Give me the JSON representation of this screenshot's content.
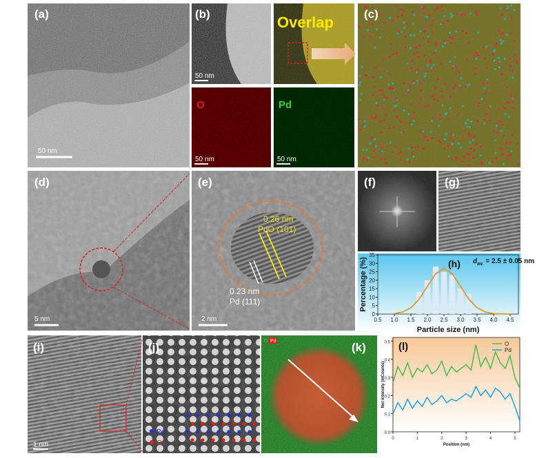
{
  "panels": {
    "a": {
      "label": "(a)",
      "scale_bar": "50 nm"
    },
    "b": {
      "label": "(b)",
      "scale_bar": "50 nm"
    },
    "overlap": {
      "label": "Overlap"
    },
    "o_map": {
      "label": "O",
      "scale_bar": "50 nm"
    },
    "pd_map": {
      "label": "Pd",
      "scale_bar": "50 nm"
    },
    "c": {
      "label": "(c)"
    },
    "d": {
      "label": "(d)",
      "scale_bar": "5 nm"
    },
    "e": {
      "label": "(e)",
      "annotations": [
        "0.26 nm",
        "PdO (101)",
        "0.23 nm",
        "Pd (111)"
      ],
      "scale_bar": "2 nm"
    },
    "f": {
      "label": "(f)"
    },
    "g": {
      "label": "(g)"
    },
    "i": {
      "label": "(i)",
      "scale_bar": "1 nm"
    },
    "j": {
      "label": "(j)",
      "legend": [
        "Pd",
        "O"
      ]
    },
    "k": {
      "label": "(k)",
      "legend": [
        "O",
        "Pd"
      ]
    }
  },
  "chart_data": [
    {
      "type": "bar",
      "label": "(h)",
      "annotation": {
        "symbol": "d",
        "subscript": "av.",
        "text": "= 2.5 ± 0.05 nm"
      },
      "x": [
        1.75,
        2.0,
        2.25,
        2.5,
        2.75,
        3.0,
        3.25
      ],
      "values": [
        13,
        20,
        28,
        25,
        23,
        15,
        12
      ],
      "color": "#dfeaf7",
      "fit": {
        "x": [
          1.0,
          1.25,
          1.5,
          1.75,
          2.0,
          2.25,
          2.5,
          2.75,
          3.0,
          3.25,
          3.5,
          3.75,
          4.0,
          4.25,
          4.5
        ],
        "values": [
          0.3,
          1.2,
          3.7,
          8.8,
          16.4,
          23.8,
          27,
          23.8,
          16.4,
          8.8,
          3.7,
          1.2,
          0.3,
          0.1,
          0
        ],
        "color": "#e8922a"
      },
      "xlabel": "Particle size (nm)",
      "ylabel": "Percentage (%)",
      "xlim": [
        0.5,
        4.75
      ],
      "xticks": [
        0.5,
        {
          "value": 1,
          "label": "1.0"
        },
        1.5,
        {
          "value": 2,
          "label": "2.0"
        },
        2.5,
        {
          "value": 3,
          "label": "3.0"
        },
        3.5,
        {
          "value": 4,
          "label": "4.0"
        },
        4.5
      ],
      "ylim": [
        0,
        35
      ],
      "yticks": [
        0,
        5,
        10,
        15,
        20,
        25,
        30,
        35
      ]
    },
    {
      "type": "line",
      "label": "(l)",
      "x": [
        0,
        0.2,
        0.4,
        0.6,
        0.8,
        1.0,
        1.2,
        1.4,
        1.6,
        1.8,
        2.0,
        2.2,
        2.4,
        2.6,
        2.8,
        3.0,
        3.2,
        3.4,
        3.6,
        3.8,
        4.0,
        4.2,
        4.4,
        4.6,
        4.8,
        5.0,
        5.2
      ],
      "series": [
        {
          "name": "O",
          "color": "#4cba4c",
          "values": [
            0.27,
            0.36,
            0.31,
            0.38,
            0.3,
            0.35,
            0.33,
            0.37,
            0.32,
            0.34,
            0.39,
            0.31,
            0.36,
            0.33,
            0.35,
            0.37,
            0.34,
            0.48,
            0.36,
            0.41,
            0.35,
            0.44,
            0.38,
            0.35,
            0.42,
            0.3,
            0.24
          ]
        },
        {
          "name": "Pd",
          "color": "#1ea0e6",
          "values": [
            0.1,
            0.16,
            0.12,
            0.18,
            0.13,
            0.17,
            0.14,
            0.19,
            0.15,
            0.17,
            0.2,
            0.16,
            0.18,
            0.17,
            0.19,
            0.21,
            0.19,
            0.25,
            0.2,
            0.23,
            0.19,
            0.24,
            0.22,
            0.18,
            0.21,
            0.14,
            0.06
          ]
        }
      ],
      "xlabel": "Position (nm)",
      "ylabel": "Net intensity (mCounts)",
      "xlim": [
        0,
        5.2
      ],
      "xticks": [
        0,
        1,
        2,
        3,
        4,
        5
      ],
      "ylim": [
        0,
        0.52
      ],
      "yticks": [
        {
          "value": 0,
          "label": "0.0"
        },
        0.1,
        0.2,
        0.3,
        0.4,
        0.5
      ],
      "legend": "upper right"
    }
  ]
}
